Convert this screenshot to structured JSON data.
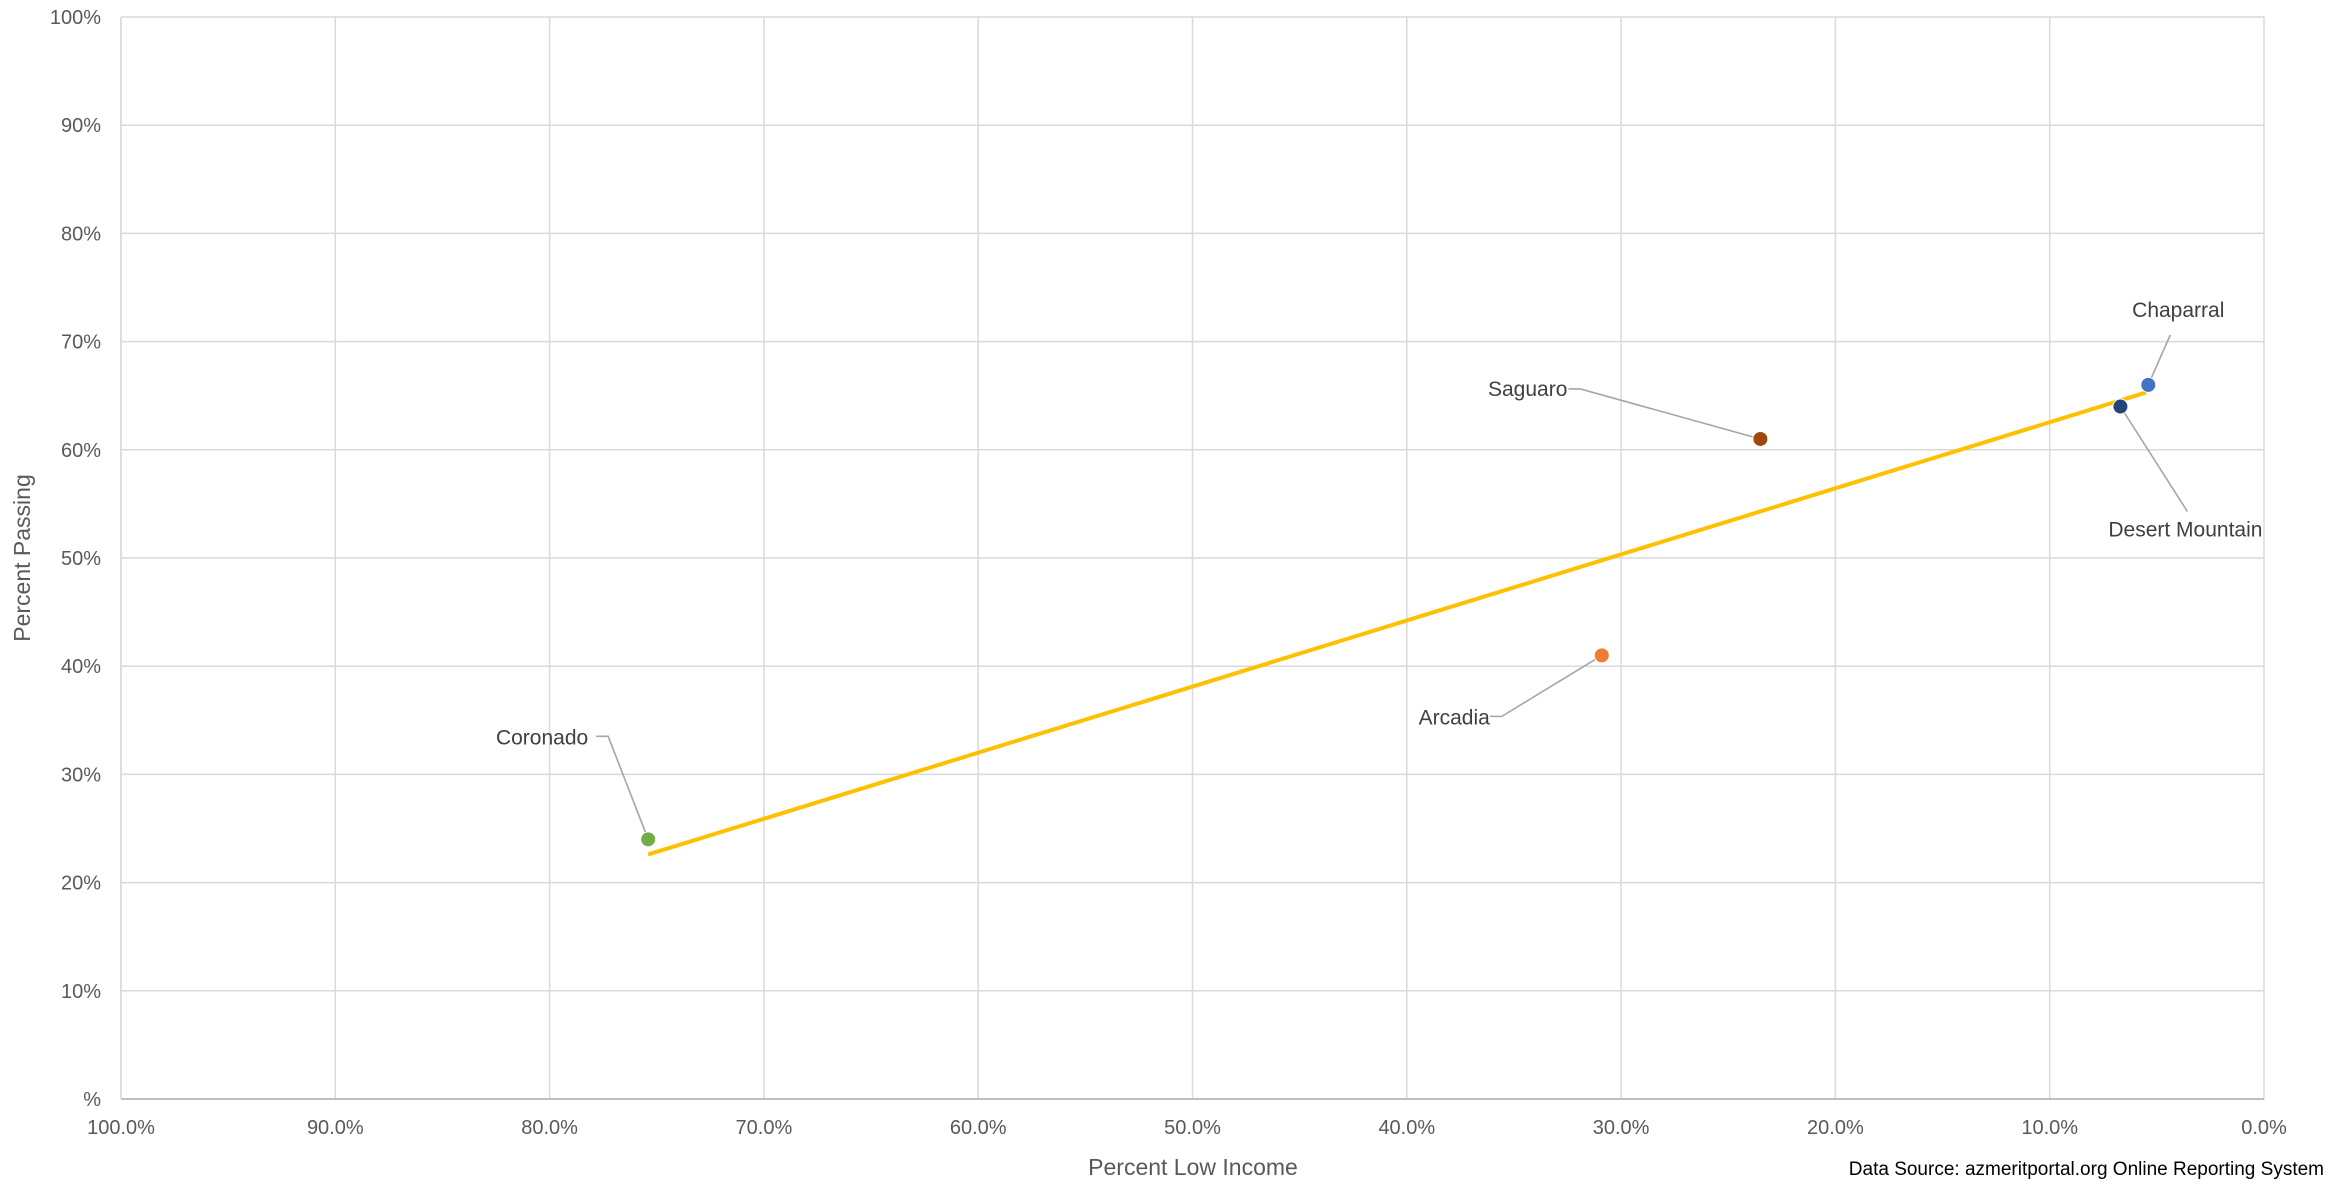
{
  "chart_data": {
    "type": "scatter",
    "xlabel": "Percent Low Income",
    "ylabel": "Percent Passing",
    "x_reversed": true,
    "xlim": [
      0,
      100
    ],
    "ylim": [
      0,
      100
    ],
    "x_ticks": [
      {
        "value": 100,
        "label": "100.0%"
      },
      {
        "value": 90,
        "label": "90.0%"
      },
      {
        "value": 80,
        "label": "80.0%"
      },
      {
        "value": 70,
        "label": "70.0%"
      },
      {
        "value": 60,
        "label": "60.0%"
      },
      {
        "value": 50,
        "label": "50.0%"
      },
      {
        "value": 40,
        "label": "40.0%"
      },
      {
        "value": 30,
        "label": "30.0%"
      },
      {
        "value": 20,
        "label": "20.0%"
      },
      {
        "value": 10,
        "label": "10.0%"
      },
      {
        "value": 0,
        "label": "0.0%"
      }
    ],
    "y_ticks": [
      {
        "value": 0,
        "label": "%"
      },
      {
        "value": 10,
        "label": "10%"
      },
      {
        "value": 20,
        "label": "20%"
      },
      {
        "value": 30,
        "label": "30%"
      },
      {
        "value": 40,
        "label": "40%"
      },
      {
        "value": 50,
        "label": "50%"
      },
      {
        "value": 60,
        "label": "60%"
      },
      {
        "value": 70,
        "label": "70%"
      },
      {
        "value": 80,
        "label": "80%"
      },
      {
        "value": 90,
        "label": "90%"
      },
      {
        "value": 100,
        "label": "100%"
      }
    ],
    "grid": true,
    "points": [
      {
        "label": "Coronado",
        "x": 75.4,
        "y": 24,
        "color": "#70ad47",
        "label_position": "upper-left"
      },
      {
        "label": "Arcadia",
        "x": 30.9,
        "y": 41,
        "color": "#ed7d31",
        "label_position": "lower-left"
      },
      {
        "label": "Saguaro",
        "x": 23.5,
        "y": 61,
        "color": "#9e480e",
        "label_position": "upper-left"
      },
      {
        "label": "Desert Mountain",
        "x": 6.7,
        "y": 64,
        "color": "#264478",
        "label_position": "lower-right"
      },
      {
        "label": "Chaparral",
        "x": 5.4,
        "y": 66,
        "color": "#4472c4",
        "label_position": "upper-right"
      }
    ],
    "trendline": {
      "type": "linear",
      "color": "#ffc000",
      "start": {
        "x": 75.4,
        "y": 22.6
      },
      "end": {
        "x": 5.5,
        "y": 65.3
      }
    },
    "source": "Data Source: azmeritportal.org Online Reporting System"
  }
}
